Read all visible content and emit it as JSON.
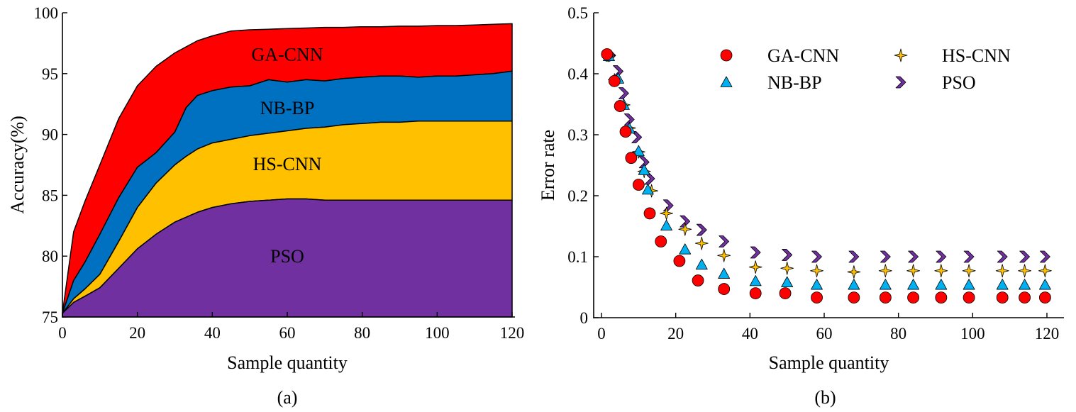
{
  "chart_data": [
    {
      "panel_label": "(a)",
      "type": "area",
      "stacked": true,
      "xlabel": "Sample quantity",
      "ylabel": "Accuracy(%)",
      "xlim": [
        0,
        120
      ],
      "ylim": [
        75,
        100
      ],
      "xticks": [
        0,
        20,
        40,
        60,
        80,
        100,
        120
      ],
      "yticks": [
        75,
        80,
        85,
        90,
        95,
        100
      ],
      "grid": false,
      "x": [
        0,
        3,
        6,
        10,
        15,
        20,
        25,
        30,
        33,
        36,
        40,
        45,
        50,
        55,
        60,
        65,
        70,
        75,
        80,
        85,
        90,
        95,
        100,
        105,
        110,
        115,
        120
      ],
      "series": [
        {
          "name": "PSO",
          "color": "#7030A0",
          "top": [
            75.3,
            76.2,
            76.7,
            77.4,
            79.0,
            80.6,
            81.8,
            82.8,
            83.2,
            83.6,
            84.0,
            84.3,
            84.5,
            84.6,
            84.7,
            84.7,
            84.6,
            84.6,
            84.6,
            84.6,
            84.6,
            84.6,
            84.6,
            84.6,
            84.6,
            84.6,
            84.6
          ]
        },
        {
          "name": "HS-CNN",
          "color": "#FFC000",
          "top": [
            75.3,
            76.5,
            77.3,
            78.5,
            81.2,
            84.0,
            86.0,
            87.5,
            88.2,
            88.8,
            89.3,
            89.6,
            89.9,
            90.1,
            90.3,
            90.5,
            90.6,
            90.8,
            90.9,
            91.0,
            91.0,
            91.1,
            91.1,
            91.1,
            91.1,
            91.1,
            91.1
          ]
        },
        {
          "name": "NB-BP",
          "color": "#0070C0",
          "top": [
            75.3,
            78.0,
            79.5,
            81.8,
            84.8,
            87.3,
            88.5,
            90.2,
            92.2,
            93.2,
            93.6,
            93.9,
            94.0,
            94.5,
            94.3,
            94.5,
            94.4,
            94.6,
            94.7,
            94.8,
            94.8,
            94.7,
            94.8,
            94.8,
            94.9,
            95.0,
            95.2
          ]
        },
        {
          "name": "GA-CNN",
          "color": "#FF0000",
          "top": [
            75.3,
            82.0,
            84.5,
            87.5,
            91.3,
            94.0,
            95.6,
            96.7,
            97.2,
            97.7,
            98.1,
            98.5,
            98.6,
            98.65,
            98.7,
            98.75,
            98.8,
            98.8,
            98.85,
            98.85,
            98.9,
            98.9,
            98.95,
            98.95,
            99.0,
            99.05,
            99.1
          ]
        }
      ]
    },
    {
      "panel_label": "(b)",
      "type": "scatter",
      "xlabel": "Sample quantity",
      "ylabel": "Error rate",
      "xlim": [
        -2,
        123
      ],
      "ylim": [
        0,
        0.5
      ],
      "xticks": [
        0,
        20,
        40,
        60,
        80,
        100,
        120
      ],
      "yticks": [
        0,
        0.1,
        0.2,
        0.3,
        0.4,
        0.5
      ],
      "grid": false,
      "legend_position": "top-right",
      "series": [
        {
          "name": "GA-CNN",
          "marker": "circle",
          "color": "#FF0000",
          "points": [
            [
              1.5,
              0.432
            ],
            [
              3.5,
              0.388
            ],
            [
              5,
              0.347
            ],
            [
              6.5,
              0.305
            ],
            [
              8,
              0.262
            ],
            [
              10,
              0.218
            ],
            [
              13,
              0.171
            ],
            [
              16,
              0.125
            ],
            [
              21,
              0.093
            ],
            [
              26,
              0.061
            ],
            [
              33,
              0.047
            ],
            [
              41.5,
              0.04
            ],
            [
              49.5,
              0.04
            ],
            [
              58,
              0.033
            ],
            [
              68,
              0.033
            ],
            [
              76.5,
              0.033
            ],
            [
              84,
              0.033
            ],
            [
              91.5,
              0.033
            ],
            [
              99,
              0.033
            ],
            [
              108,
              0.033
            ],
            [
              114,
              0.033
            ],
            [
              119.5,
              0.033
            ]
          ]
        },
        {
          "name": "NB-BP",
          "marker": "triangle",
          "color": "#00B0F0",
          "points": [
            [
              2,
              0.429
            ],
            [
              4.5,
              0.392
            ],
            [
              6,
              0.349
            ],
            [
              7.5,
              0.31
            ],
            [
              10,
              0.273
            ],
            [
              11.5,
              0.242
            ],
            [
              12.5,
              0.21
            ],
            [
              17.5,
              0.151
            ],
            [
              22.5,
              0.112
            ],
            [
              27,
              0.087
            ],
            [
              33,
              0.072
            ],
            [
              41.5,
              0.06
            ],
            [
              50,
              0.058
            ],
            [
              58,
              0.054
            ],
            [
              68,
              0.054
            ],
            [
              76.5,
              0.054
            ],
            [
              84,
              0.054
            ],
            [
              91.5,
              0.054
            ],
            [
              99,
              0.054
            ],
            [
              108,
              0.054
            ],
            [
              114,
              0.054
            ],
            [
              119.5,
              0.054
            ]
          ]
        },
        {
          "name": "HS-CNN",
          "marker": "star",
          "color": "#FFC000",
          "points": [
            [
              2,
              0.43
            ],
            [
              3.5,
              0.39
            ],
            [
              6,
              0.349
            ],
            [
              7.5,
              0.311
            ],
            [
              10,
              0.272
            ],
            [
              11.5,
              0.24
            ],
            [
              13.5,
              0.208
            ],
            [
              17.5,
              0.171
            ],
            [
              22.5,
              0.145
            ],
            [
              27,
              0.122
            ],
            [
              33,
              0.102
            ],
            [
              41.5,
              0.083
            ],
            [
              50,
              0.081
            ],
            [
              58,
              0.077
            ],
            [
              68,
              0.075
            ],
            [
              76.5,
              0.077
            ],
            [
              84,
              0.077
            ],
            [
              91.5,
              0.077
            ],
            [
              99,
              0.077
            ],
            [
              108,
              0.077
            ],
            [
              114,
              0.077
            ],
            [
              119.5,
              0.077
            ]
          ]
        },
        {
          "name": "PSO",
          "marker": "chevron",
          "color": "#7030A0",
          "points": [
            [
              2.5,
              0.43
            ],
            [
              4.5,
              0.404
            ],
            [
              6,
              0.368
            ],
            [
              7.5,
              0.325
            ],
            [
              9.5,
              0.296
            ],
            [
              11.5,
              0.255
            ],
            [
              13,
              0.228
            ],
            [
              18,
              0.184
            ],
            [
              22.5,
              0.158
            ],
            [
              27,
              0.144
            ],
            [
              33,
              0.125
            ],
            [
              41.5,
              0.107
            ],
            [
              50,
              0.103
            ],
            [
              58,
              0.1
            ],
            [
              68,
              0.1
            ],
            [
              76.5,
              0.1
            ],
            [
              84,
              0.1
            ],
            [
              91.5,
              0.1
            ],
            [
              99,
              0.1
            ],
            [
              108,
              0.1
            ],
            [
              114,
              0.1
            ],
            [
              119.5,
              0.1
            ]
          ]
        }
      ]
    }
  ]
}
